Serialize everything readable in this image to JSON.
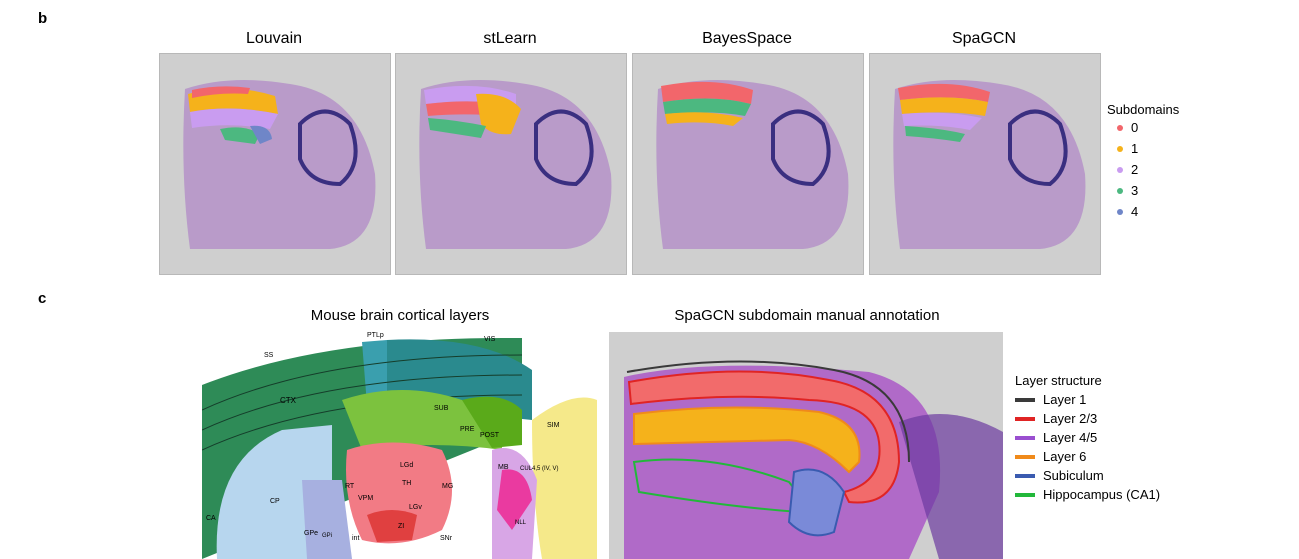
{
  "panel_b": {
    "letter": "b",
    "methods": [
      "Louvain",
      "stLearn",
      "BayesSpace",
      "SpaGCN"
    ],
    "legend": {
      "title": "Subdomains",
      "items": [
        {
          "label": "0",
          "color": "#f2666b"
        },
        {
          "label": "1",
          "color": "#f5b21b"
        },
        {
          "label": "2",
          "color": "#c99cf0"
        },
        {
          "label": "3",
          "color": "#4cb880"
        },
        {
          "label": "4",
          "color": "#6f86c8"
        }
      ]
    }
  },
  "panel_c": {
    "letter": "c",
    "left_title": "Mouse brain cortical layers",
    "right_title": "SpaGCN subdomain manual annotation",
    "atlas_labels": {
      "ss": "SS",
      "ptlp": "PTLp",
      "vis": "VIS",
      "ctx": "CTX",
      "cp": "CP",
      "sub": "SUB",
      "post": "POST",
      "pre": "PRE",
      "lgd": "LGd",
      "mg": "MG",
      "rt": "RT",
      "vpm": "VPM",
      "lgv": "LGv",
      "zi": "ZI",
      "mb": "MB",
      "snr": "SNr",
      "gpe": "GPe",
      "gpi": "GPi",
      "sim": "SIM",
      "int": "int",
      "ca": "CA",
      "nll": "NLL",
      "cul": "CUL4,5 (IV, V)",
      "th": "TH"
    },
    "legend": {
      "title": "Layer structure",
      "items": [
        {
          "label": "Layer 1",
          "color": "#3a3a3a"
        },
        {
          "label": "Layer 2/3",
          "color": "#e02424"
        },
        {
          "label": "Layer 4/5",
          "color": "#9a4fd0"
        },
        {
          "label": "Layer 6",
          "color": "#f08a1a"
        },
        {
          "label": "Subiculum",
          "color": "#3a5bb0"
        },
        {
          "label": "Hippocampus (CA1)",
          "color": "#22b83a"
        }
      ]
    }
  }
}
